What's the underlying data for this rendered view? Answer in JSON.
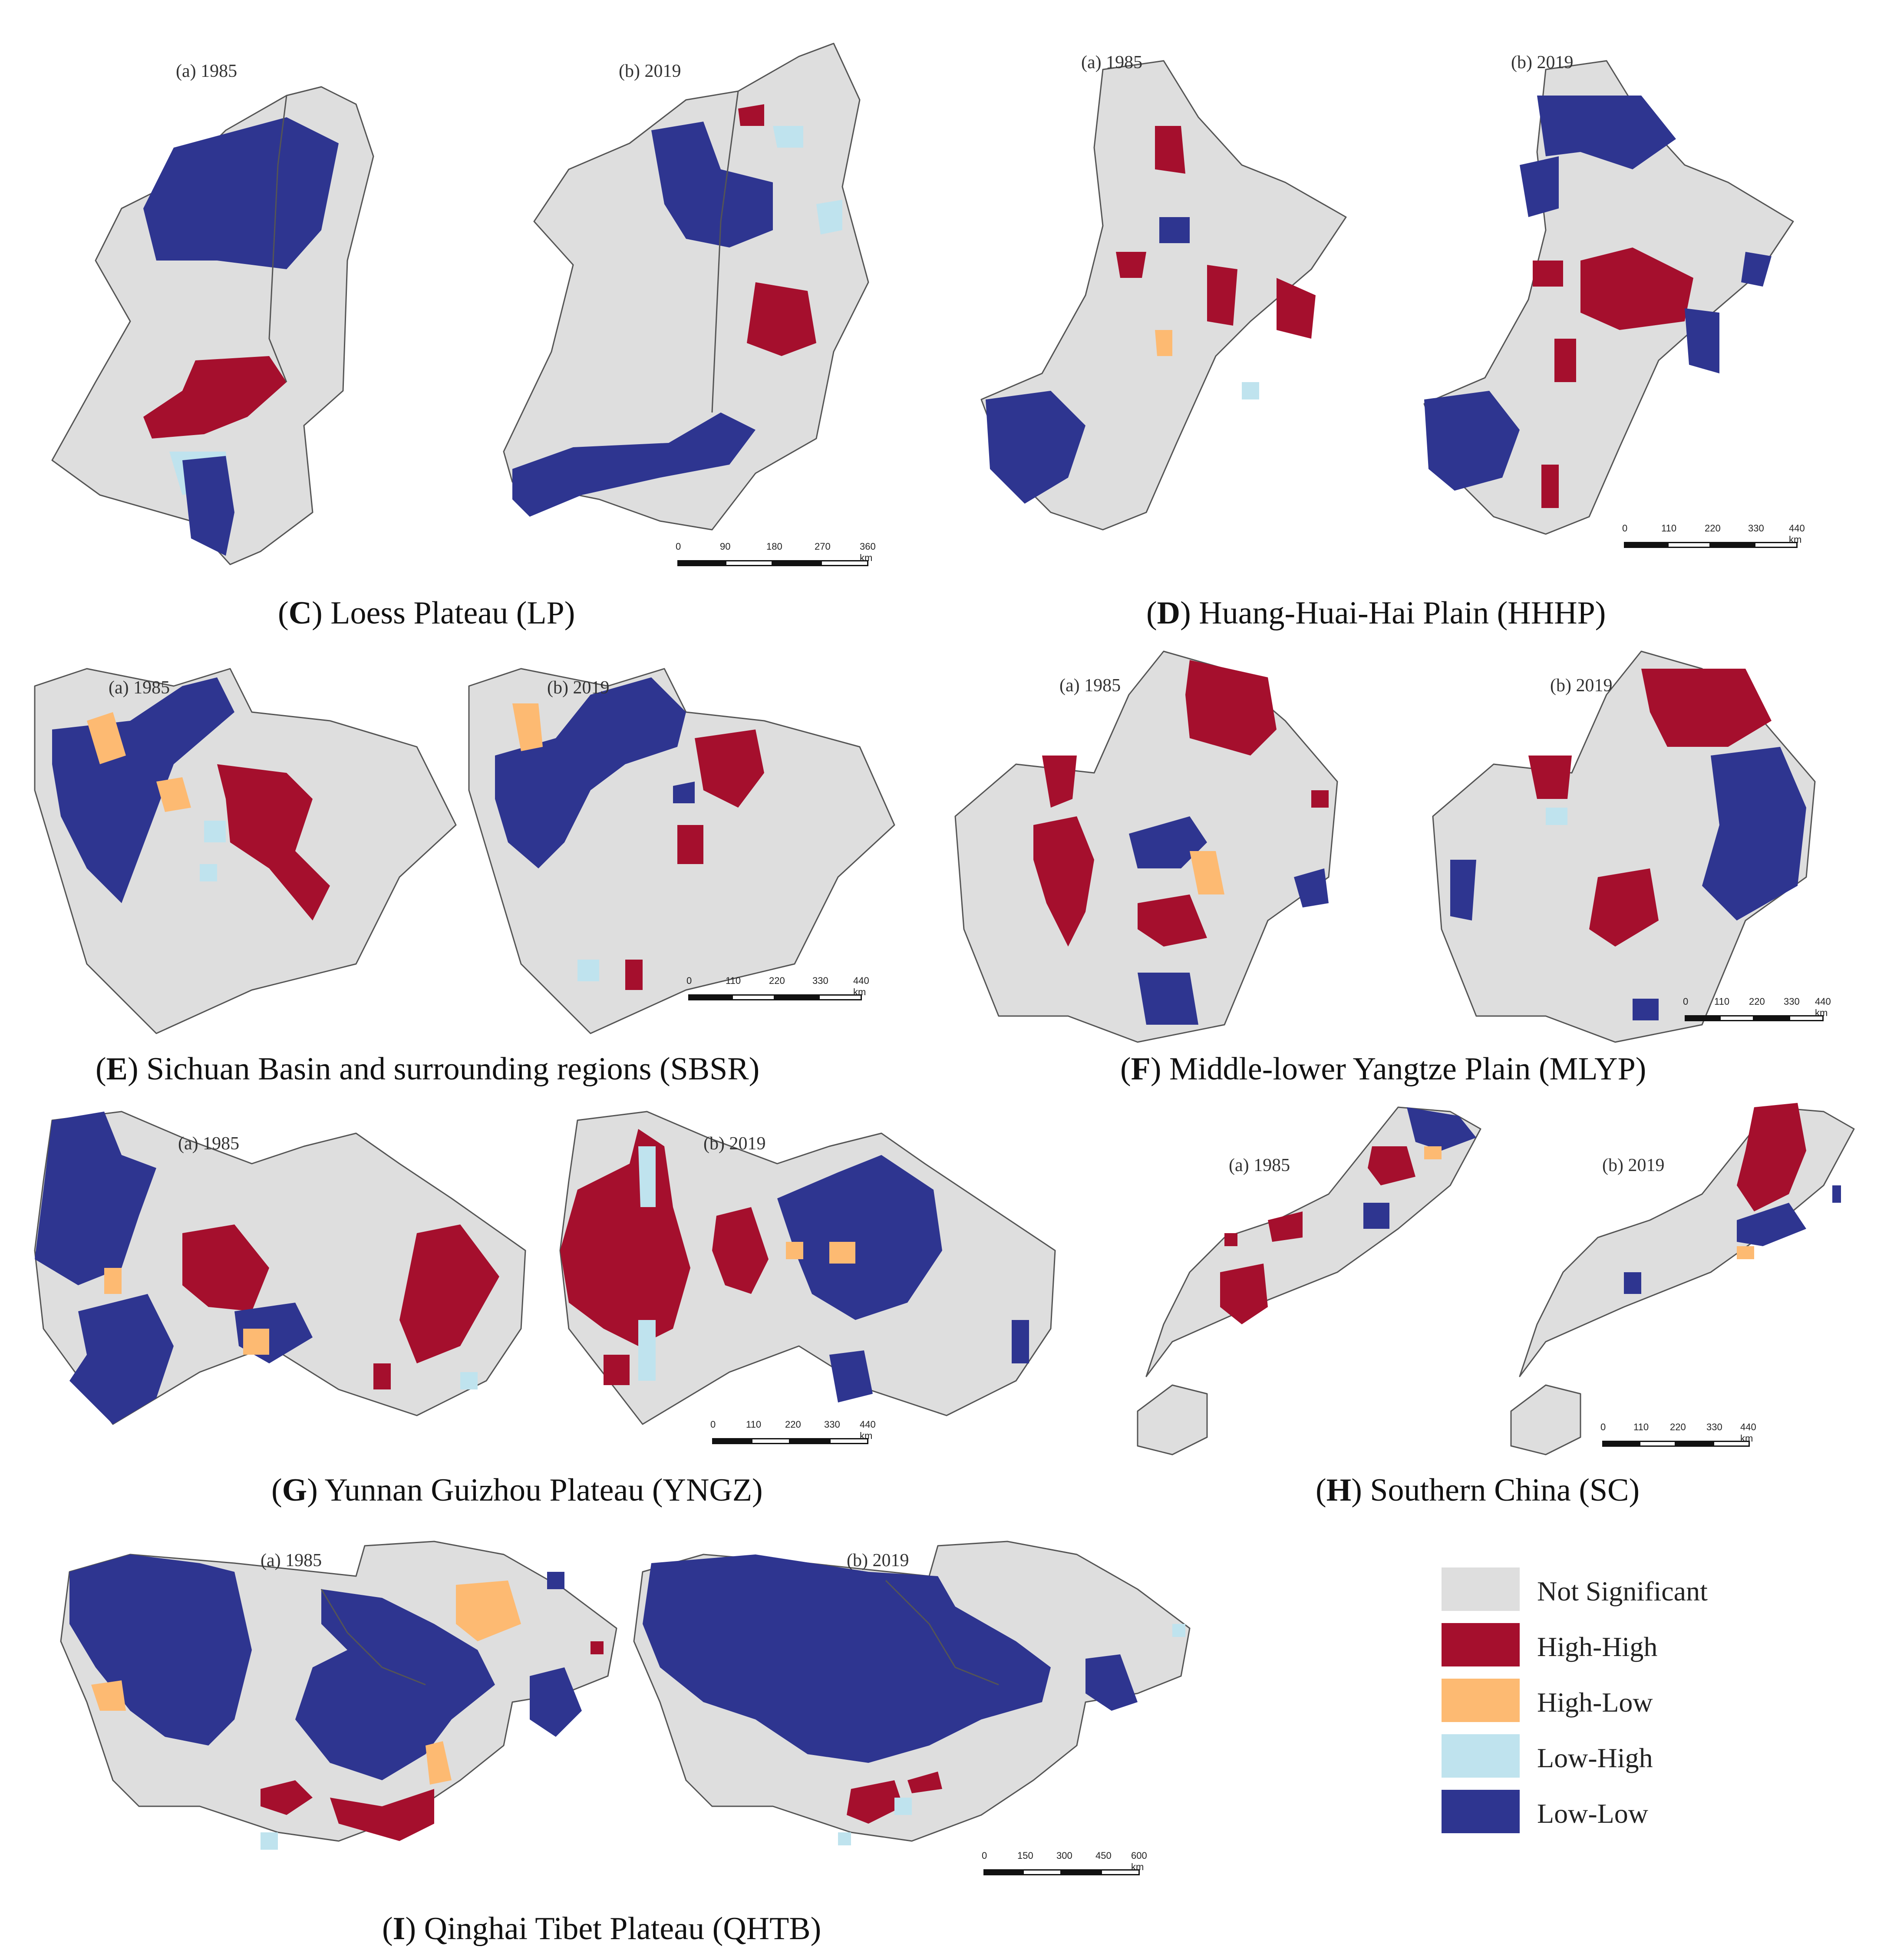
{
  "panels": [
    {
      "id": "C",
      "title_letter": "C",
      "title_rest": "Loess Plateau (LP)",
      "year_a": "(a) 1985",
      "year_b": "(b) 2019",
      "scale": {
        "ticks": [
          "0",
          "90",
          "180",
          "270",
          "360 km"
        ]
      }
    },
    {
      "id": "D",
      "title_letter": "D",
      "title_rest": "Huang-Huai-Hai Plain (HHHP)",
      "year_a": "(a) 1985",
      "year_b": "(b) 2019",
      "scale": {
        "ticks": [
          "0",
          "110",
          "220",
          "330",
          "440 km"
        ]
      }
    },
    {
      "id": "E",
      "title_letter": "E",
      "title_rest": "Sichuan Basin and surrounding regions (SBSR)",
      "year_a": "(a) 1985",
      "year_b": "(b) 2019",
      "scale": {
        "ticks": [
          "0",
          "110",
          "220",
          "330",
          "440 km"
        ]
      }
    },
    {
      "id": "F",
      "title_letter": "F",
      "title_rest": "Middle-lower Yangtze Plain (MLYP)",
      "year_a": "(a) 1985",
      "year_b": "(b) 2019",
      "scale": {
        "ticks": [
          "0",
          "110",
          "220",
          "330",
          "440 km"
        ]
      }
    },
    {
      "id": "G",
      "title_letter": "G",
      "title_rest": "Yunnan Guizhou Plateau (YNGZ)",
      "year_a": "(a) 1985",
      "year_b": "(b) 2019",
      "scale": {
        "ticks": [
          "0",
          "110",
          "220",
          "330",
          "440 km"
        ]
      }
    },
    {
      "id": "H",
      "title_letter": "H",
      "title_rest": "Southern China (SC)",
      "year_a": "(a) 1985",
      "year_b": "(b) 2019",
      "scale": {
        "ticks": [
          "0",
          "110",
          "220",
          "330",
          "440 km"
        ]
      }
    },
    {
      "id": "I",
      "title_letter": "I",
      "title_rest": "Qinghai Tibet Plateau (QHTB)",
      "year_a": "(a) 1985",
      "year_b": "(b) 2019",
      "scale": {
        "ticks": [
          "0",
          "150",
          "300",
          "450",
          "600 km"
        ]
      }
    }
  ],
  "legend": [
    {
      "label": "Not Significant",
      "color": "#dedede"
    },
    {
      "label": "High-High",
      "color": "#a50f2d"
    },
    {
      "label": "High-Low",
      "color": "#fdba72"
    },
    {
      "label": "Low-High",
      "color": "#bfe3ee"
    },
    {
      "label": "Low-Low",
      "color": "#2e3590"
    }
  ],
  "colors": {
    "base": "#dedede",
    "hh": "#a50f2d",
    "hl": "#fdba72",
    "lh": "#bfe3ee",
    "ll": "#2e3590"
  }
}
